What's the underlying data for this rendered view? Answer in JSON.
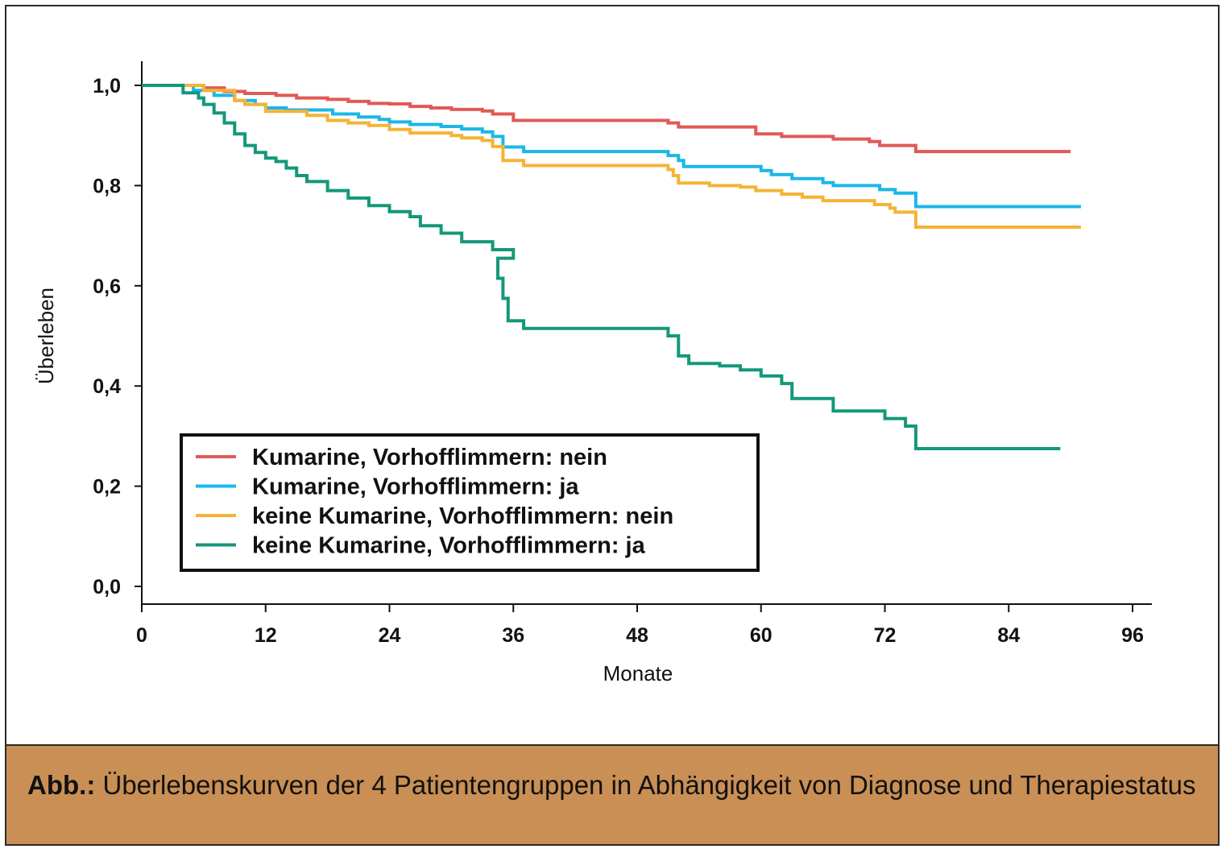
{
  "chart_data": {
    "type": "line",
    "step": true,
    "title": "",
    "xlabel": "Monate",
    "ylabel": "Überleben",
    "xlim": [
      0,
      96
    ],
    "ylim": [
      0,
      1.0
    ],
    "x_ticks": [
      "0",
      "12",
      "24",
      "36",
      "48",
      "60",
      "72",
      "84",
      "96"
    ],
    "y_ticks": [
      "0,0",
      "0,2",
      "0,4",
      "0,6",
      "0,8",
      "1,0"
    ],
    "legend_position": "lower-left",
    "series": [
      {
        "name": "Kumarine, Vorhofflimmern: nein",
        "color": "#e05a57",
        "points": [
          [
            0,
            1.0
          ],
          [
            5,
            1.0
          ],
          [
            6,
            0.995
          ],
          [
            8,
            0.988
          ],
          [
            10,
            0.984
          ],
          [
            13,
            0.98
          ],
          [
            15,
            0.975
          ],
          [
            18,
            0.972
          ],
          [
            20,
            0.968
          ],
          [
            22,
            0.964
          ],
          [
            24,
            0.963
          ],
          [
            26,
            0.958
          ],
          [
            28,
            0.955
          ],
          [
            30,
            0.952
          ],
          [
            33,
            0.949
          ],
          [
            34,
            0.943
          ],
          [
            36,
            0.93
          ],
          [
            50,
            0.93
          ],
          [
            51,
            0.925
          ],
          [
            52,
            0.917
          ],
          [
            59,
            0.917
          ],
          [
            59.5,
            0.903
          ],
          [
            62,
            0.898
          ],
          [
            67,
            0.893
          ],
          [
            70.5,
            0.888
          ],
          [
            71.5,
            0.88
          ],
          [
            74.5,
            0.88
          ],
          [
            75,
            0.868
          ],
          [
            90,
            0.868
          ]
        ]
      },
      {
        "name": "Kumarine, Vorhofflimmern: ja",
        "color": "#1ab7e8",
        "points": [
          [
            0,
            1.0
          ],
          [
            4,
            1.0
          ],
          [
            5,
            0.99
          ],
          [
            7,
            0.98
          ],
          [
            9,
            0.97
          ],
          [
            11,
            0.962
          ],
          [
            12,
            0.955
          ],
          [
            14,
            0.951
          ],
          [
            18,
            0.951
          ],
          [
            18.5,
            0.943
          ],
          [
            21,
            0.937
          ],
          [
            23,
            0.932
          ],
          [
            24,
            0.927
          ],
          [
            26,
            0.922
          ],
          [
            29,
            0.918
          ],
          [
            31,
            0.913
          ],
          [
            33,
            0.907
          ],
          [
            34,
            0.898
          ],
          [
            35,
            0.877
          ],
          [
            37,
            0.868
          ],
          [
            50,
            0.868
          ],
          [
            51,
            0.86
          ],
          [
            52,
            0.85
          ],
          [
            52.5,
            0.838
          ],
          [
            58,
            0.838
          ],
          [
            60,
            0.83
          ],
          [
            61,
            0.822
          ],
          [
            63,
            0.814
          ],
          [
            66,
            0.806
          ],
          [
            67,
            0.8
          ],
          [
            71,
            0.8
          ],
          [
            71.5,
            0.792
          ],
          [
            73,
            0.785
          ],
          [
            75,
            0.758
          ],
          [
            91,
            0.758
          ]
        ]
      },
      {
        "name": "keine Kumarine, Vorhofflimmern: nein",
        "color": "#f5b335",
        "points": [
          [
            0,
            1.0
          ],
          [
            4,
            1.0
          ],
          [
            6,
            0.99
          ],
          [
            9,
            0.97
          ],
          [
            10,
            0.962
          ],
          [
            12,
            0.948
          ],
          [
            16,
            0.94
          ],
          [
            18,
            0.93
          ],
          [
            20,
            0.925
          ],
          [
            22,
            0.92
          ],
          [
            24,
            0.912
          ],
          [
            26,
            0.905
          ],
          [
            30,
            0.9
          ],
          [
            31,
            0.895
          ],
          [
            33,
            0.89
          ],
          [
            34,
            0.878
          ],
          [
            35,
            0.85
          ],
          [
            37,
            0.84
          ],
          [
            50,
            0.84
          ],
          [
            51,
            0.832
          ],
          [
            51.5,
            0.82
          ],
          [
            52,
            0.805
          ],
          [
            55,
            0.8
          ],
          [
            58,
            0.797
          ],
          [
            59.5,
            0.79
          ],
          [
            62,
            0.783
          ],
          [
            64,
            0.777
          ],
          [
            66,
            0.77
          ],
          [
            70.5,
            0.77
          ],
          [
            71,
            0.762
          ],
          [
            72.5,
            0.755
          ],
          [
            73,
            0.747
          ],
          [
            74.5,
            0.747
          ],
          [
            75,
            0.717
          ],
          [
            91,
            0.717
          ]
        ]
      },
      {
        "name": "keine Kumarine, Vorhofflimmern: ja",
        "color": "#13987a",
        "points": [
          [
            0,
            1.0
          ],
          [
            4,
            1.0
          ],
          [
            4,
            0.985
          ],
          [
            5.5,
            0.975
          ],
          [
            6,
            0.962
          ],
          [
            7,
            0.945
          ],
          [
            8,
            0.925
          ],
          [
            9,
            0.903
          ],
          [
            10,
            0.88
          ],
          [
            11,
            0.866
          ],
          [
            12,
            0.855
          ],
          [
            13,
            0.848
          ],
          [
            14,
            0.835
          ],
          [
            15,
            0.82
          ],
          [
            16,
            0.808
          ],
          [
            18,
            0.79
          ],
          [
            20,
            0.775
          ],
          [
            22,
            0.76
          ],
          [
            24,
            0.748
          ],
          [
            26,
            0.738
          ],
          [
            27,
            0.72
          ],
          [
            29,
            0.705
          ],
          [
            31,
            0.688
          ],
          [
            34,
            0.672
          ],
          [
            36,
            0.655
          ],
          [
            34.5,
            0.615
          ],
          [
            35,
            0.575
          ],
          [
            35.5,
            0.53
          ],
          [
            37,
            0.515
          ],
          [
            50,
            0.515
          ],
          [
            51,
            0.5
          ],
          [
            52,
            0.46
          ],
          [
            53,
            0.445
          ],
          [
            56,
            0.44
          ],
          [
            58,
            0.432
          ],
          [
            60,
            0.42
          ],
          [
            62,
            0.405
          ],
          [
            63,
            0.375
          ],
          [
            67,
            0.35
          ],
          [
            71,
            0.35
          ],
          [
            72,
            0.335
          ],
          [
            74,
            0.32
          ],
          [
            75,
            0.275
          ],
          [
            89,
            0.275
          ]
        ]
      }
    ]
  },
  "caption": {
    "label": "Abb.:",
    "text": " Überlebenskurven der 4 Patientengruppen in Abhängigkeit von Diagnose und Therapiestatus"
  }
}
